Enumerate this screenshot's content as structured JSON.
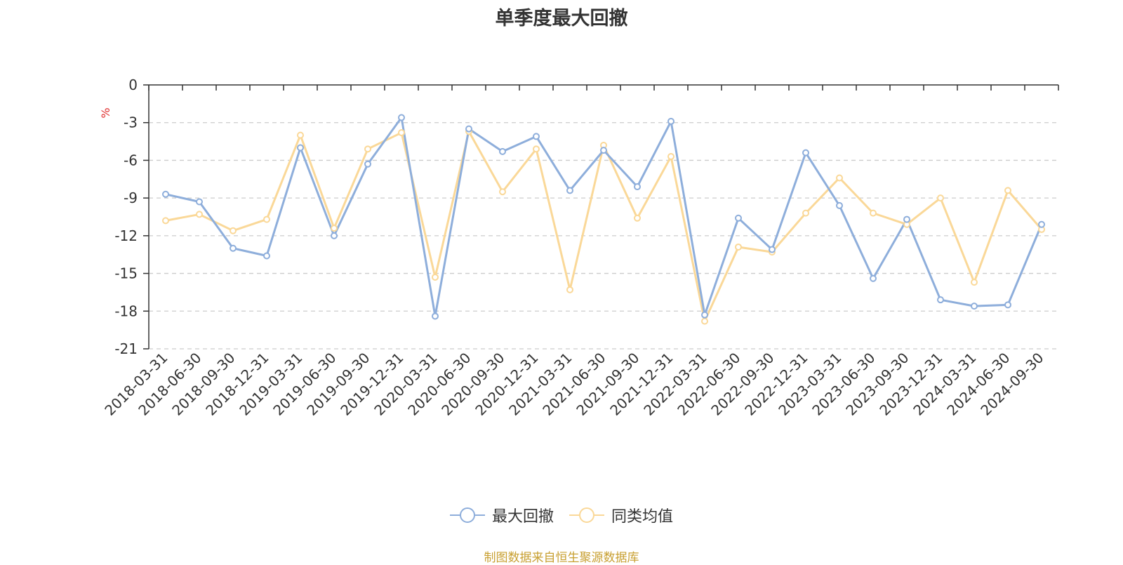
{
  "chart_data": {
    "type": "line",
    "title": "单季度最大回撤",
    "ylabel": "%",
    "ylim": [
      -21,
      0
    ],
    "yticks": [
      0,
      -3,
      -6,
      -9,
      -12,
      -15,
      -18,
      -21
    ],
    "grid": true,
    "legend_position": "bottom-center",
    "categories": [
      "2018-03-31",
      "2018-06-30",
      "2018-09-30",
      "2018-12-31",
      "2019-03-31",
      "2019-06-30",
      "2019-09-30",
      "2019-12-31",
      "2020-03-31",
      "2020-06-30",
      "2020-09-30",
      "2020-12-31",
      "2021-03-31",
      "2021-06-30",
      "2021-09-30",
      "2021-12-31",
      "2022-03-31",
      "2022-06-30",
      "2022-09-30",
      "2022-12-31",
      "2023-03-31",
      "2023-06-30",
      "2023-09-30",
      "2023-12-31",
      "2024-03-31",
      "2024-06-30",
      "2024-09-30"
    ],
    "series": [
      {
        "name": "最大回撤",
        "color": "#8eaedb",
        "values": [
          -8.7,
          -9.3,
          -13.0,
          -13.6,
          -5.0,
          -12.0,
          -6.3,
          -2.6,
          -18.4,
          -3.5,
          -5.3,
          -4.1,
          -8.4,
          -5.2,
          -8.1,
          -2.9,
          -18.3,
          -10.6,
          -13.1,
          -5.4,
          -9.6,
          -15.4,
          -10.7,
          -17.1,
          -17.6,
          -17.5,
          -11.1
        ]
      },
      {
        "name": "同类均值",
        "color": "#fad898",
        "values": [
          -10.8,
          -10.3,
          -11.6,
          -10.7,
          -4.0,
          -11.4,
          -5.1,
          -3.8,
          -15.3,
          -3.7,
          -8.5,
          -5.1,
          -16.3,
          -4.8,
          -10.6,
          -5.7,
          -18.8,
          -12.9,
          -13.3,
          -10.2,
          -7.4,
          -10.2,
          -11.1,
          -9.0,
          -15.7,
          -8.4,
          -11.5
        ]
      }
    ]
  },
  "footer": {
    "source": "制图数据来自恒生聚源数据库"
  },
  "colors": {
    "axis": "#333333",
    "grid": "#cccccc",
    "ylabel": "#e03030",
    "source": "#c8a032"
  }
}
